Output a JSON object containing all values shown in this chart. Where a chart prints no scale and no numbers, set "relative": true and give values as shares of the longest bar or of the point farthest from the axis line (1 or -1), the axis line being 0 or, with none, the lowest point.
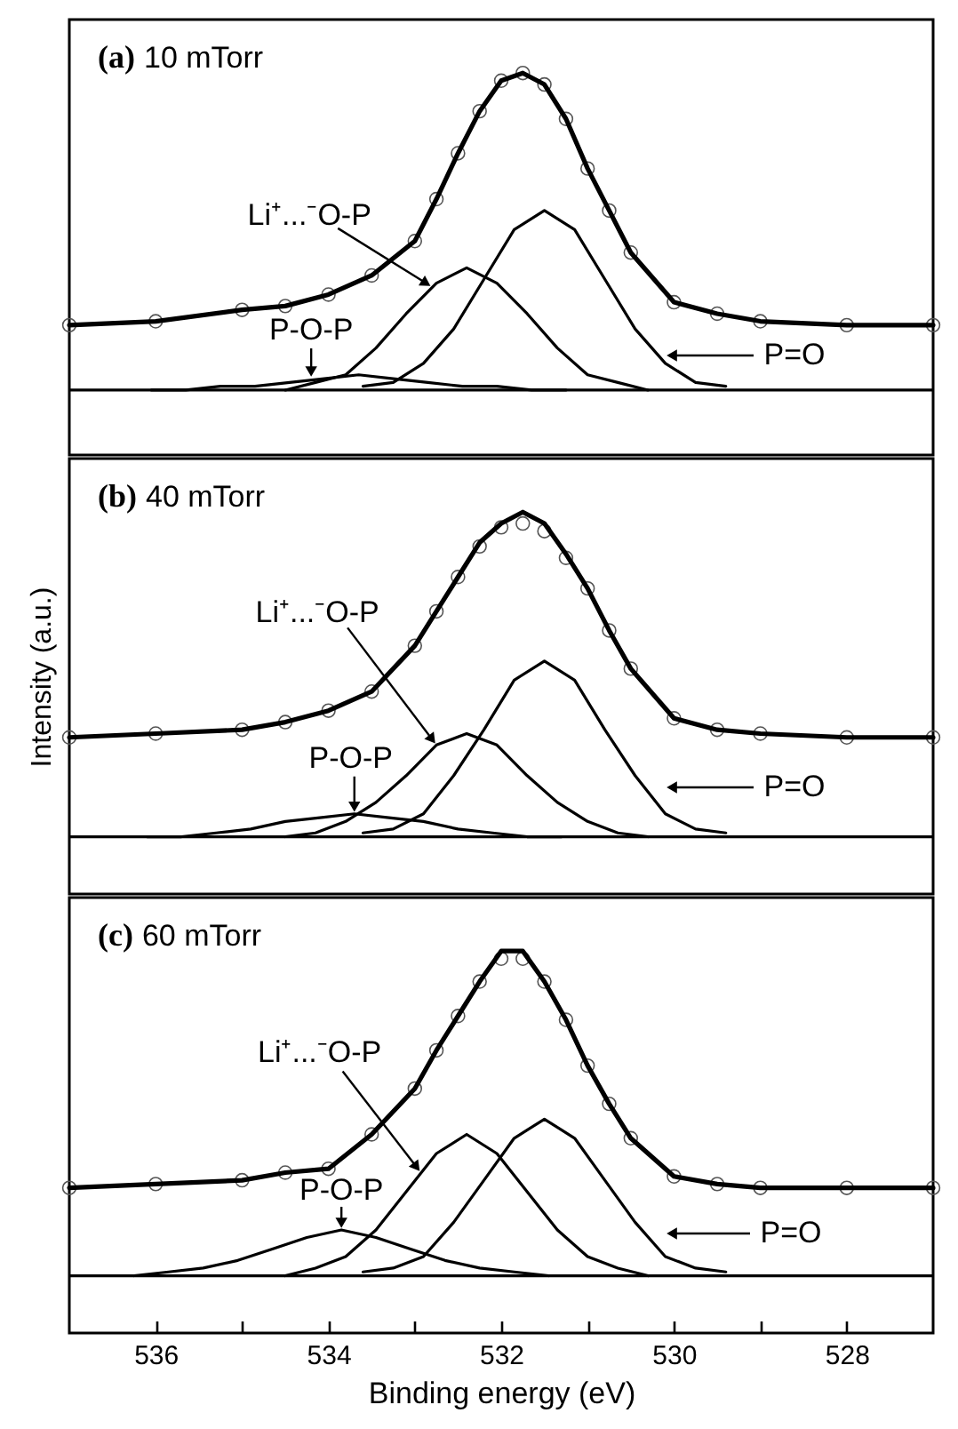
{
  "chart_data": [
    {
      "type": "line",
      "title": "(a) 10 mTorr",
      "relative": true,
      "xlim": [
        537,
        527
      ],
      "tick_labels": false,
      "series": [
        {
          "type": "scatter",
          "marker": "circle",
          "color": "#555555",
          "x": [
            537,
            536,
            535,
            534.5,
            534,
            533.5,
            533,
            532.75,
            532.5,
            532.25,
            532,
            531.75,
            531.5,
            531.25,
            531,
            530.75,
            530.5,
            530,
            529.5,
            529,
            528,
            527
          ],
          "values": [
            0.34,
            0.35,
            0.38,
            0.39,
            0.42,
            0.47,
            0.56,
            0.67,
            0.79,
            0.9,
            0.98,
            1.0,
            0.97,
            0.88,
            0.75,
            0.64,
            0.53,
            0.4,
            0.37,
            0.35,
            0.34,
            0.34
          ]
        },
        {
          "color": "#000000",
          "x": [
            537,
            536,
            535,
            534.5,
            534,
            533.5,
            533,
            532.75,
            532.5,
            532.25,
            532,
            531.75,
            531.5,
            531.25,
            531,
            530.75,
            530.5,
            530,
            529.5,
            529,
            528,
            527
          ],
          "values": [
            0.34,
            0.35,
            0.38,
            0.39,
            0.42,
            0.47,
            0.56,
            0.67,
            0.79,
            0.9,
            0.98,
            1.0,
            0.97,
            0.88,
            0.75,
            0.64,
            0.53,
            0.4,
            0.37,
            0.35,
            0.34,
            0.34
          ]
        },
        {
          "color": "#000000",
          "x": [
            533.6,
            533.25,
            532.9,
            532.55,
            532.2,
            531.85,
            531.5,
            531.15,
            530.8,
            530.45,
            530.1,
            529.75,
            529.4
          ],
          "values": [
            0.18,
            0.19,
            0.24,
            0.33,
            0.46,
            0.59,
            0.64,
            0.59,
            0.46,
            0.33,
            0.24,
            0.19,
            0.18
          ]
        },
        {
          "color": "#000000",
          "x": [
            534.5,
            534.15,
            533.8,
            533.45,
            533.1,
            532.75,
            532.4,
            532.05,
            531.7,
            531.35,
            531,
            530.65,
            530.3
          ],
          "values": [
            0.17,
            0.19,
            0.21,
            0.28,
            0.37,
            0.45,
            0.49,
            0.45,
            0.37,
            0.28,
            0.21,
            0.19,
            0.17
          ]
        },
        {
          "color": "#000000",
          "x": [
            536.05,
            535.65,
            535.25,
            534.85,
            534.45,
            534.05,
            533.65,
            533.25,
            532.85,
            532.45,
            532.05,
            531.65,
            531.25
          ],
          "values": [
            0.17,
            0.17,
            0.18,
            0.18,
            0.19,
            0.2,
            0.21,
            0.2,
            0.19,
            0.18,
            0.18,
            0.17,
            0.17
          ]
        }
      ],
      "ref_lines": [
        {
          "axis": "y",
          "value": 0.17
        }
      ],
      "annotations": [
        {
          "text": "Li⁺...⁻O-P",
          "x": 532.8,
          "y": 0.44
        },
        {
          "text": "P-O-P",
          "x": 534.2,
          "y": 0.2
        },
        "P=O"
      ]
    },
    {
      "type": "line",
      "title": "(b) 40 mTorr",
      "ylabel": "Intensity (a.u.)",
      "relative": true,
      "xlim": [
        537,
        527
      ],
      "tick_labels": false,
      "series": [
        {
          "type": "scatter",
          "marker": "circle",
          "color": "#555555",
          "x": [
            537,
            536,
            535,
            534.5,
            534,
            533.5,
            533,
            532.75,
            532.5,
            532.25,
            532,
            531.75,
            531.5,
            531.25,
            531,
            530.75,
            530.5,
            530,
            529.5,
            529,
            528,
            527
          ],
          "values": [
            0.41,
            0.42,
            0.43,
            0.45,
            0.48,
            0.53,
            0.65,
            0.74,
            0.83,
            0.91,
            0.96,
            0.97,
            0.95,
            0.88,
            0.8,
            0.69,
            0.59,
            0.46,
            0.43,
            0.42,
            0.41,
            0.41
          ]
        },
        {
          "color": "#000000",
          "x": [
            537,
            536,
            535,
            534.5,
            534,
            533.5,
            533,
            532.75,
            532.5,
            532.25,
            532,
            531.75,
            531.5,
            531.25,
            531,
            530.75,
            530.5,
            530,
            529.5,
            529,
            528,
            527
          ],
          "values": [
            0.41,
            0.42,
            0.43,
            0.45,
            0.48,
            0.53,
            0.65,
            0.74,
            0.83,
            0.92,
            0.97,
            1.0,
            0.97,
            0.89,
            0.8,
            0.69,
            0.59,
            0.46,
            0.43,
            0.42,
            0.41,
            0.41
          ]
        },
        {
          "color": "#000000",
          "x": [
            533.6,
            533.25,
            532.9,
            532.55,
            532.2,
            531.85,
            531.5,
            531.15,
            530.8,
            530.45,
            530.1,
            529.75,
            529.4
          ],
          "values": [
            0.16,
            0.17,
            0.21,
            0.31,
            0.43,
            0.56,
            0.61,
            0.56,
            0.43,
            0.31,
            0.21,
            0.17,
            0.16
          ]
        },
        {
          "color": "#000000",
          "x": [
            534.5,
            534.15,
            533.8,
            533.45,
            533.1,
            532.75,
            532.4,
            532.05,
            531.7,
            531.35,
            531,
            530.65,
            530.3
          ],
          "values": [
            0.15,
            0.16,
            0.19,
            0.24,
            0.31,
            0.39,
            0.42,
            0.39,
            0.31,
            0.24,
            0.19,
            0.16,
            0.15
          ]
        },
        {
          "color": "#000000",
          "x": [
            536.1,
            535.7,
            535.3,
            534.9,
            534.5,
            534.1,
            533.7,
            533.3,
            532.9,
            532.5,
            532.1,
            531.7,
            531.3
          ],
          "values": [
            0.15,
            0.15,
            0.16,
            0.17,
            0.19,
            0.2,
            0.21,
            0.2,
            0.19,
            0.17,
            0.16,
            0.15,
            0.15
          ]
        }
      ],
      "ref_lines": [
        {
          "axis": "y",
          "value": 0.15
        }
      ],
      "annotations": [
        {
          "text": "Li⁺...⁻O-P",
          "x": 532.75,
          "y": 0.39
        },
        {
          "text": "P-O-P",
          "x": 533.7,
          "y": 0.21
        },
        "P=O"
      ]
    },
    {
      "type": "line",
      "title": "(c) 60 mTorr",
      "xlabel": "Binding energy (eV)",
      "relative": true,
      "xlim": [
        537,
        527
      ],
      "xticks": [
        536,
        {
          "value": 535,
          "label": null
        },
        534,
        {
          "value": 533,
          "label": null
        },
        532,
        {
          "value": 531,
          "label": null
        },
        530,
        {
          "value": 529,
          "label": null
        },
        528
      ],
      "tick_labels": "x",
      "series": [
        {
          "type": "scatter",
          "marker": "circle",
          "color": "#555555",
          "x": [
            537,
            536,
            535,
            534.5,
            534,
            533.5,
            533,
            532.75,
            532.5,
            532.25,
            532,
            531.75,
            531.5,
            531.25,
            531,
            530.75,
            530.5,
            530,
            529.5,
            529,
            528,
            527
          ],
          "values": [
            0.38,
            0.39,
            0.4,
            0.42,
            0.43,
            0.52,
            0.64,
            0.74,
            0.83,
            0.92,
            0.98,
            0.98,
            0.92,
            0.82,
            0.7,
            0.6,
            0.51,
            0.41,
            0.39,
            0.38,
            0.38,
            0.38
          ]
        },
        {
          "color": "#000000",
          "x": [
            537,
            536,
            535,
            534.5,
            534,
            533.5,
            533,
            532.75,
            532.5,
            532.25,
            532,
            531.75,
            531.5,
            531.25,
            531,
            530.75,
            530.5,
            530,
            529.5,
            529,
            528,
            527
          ],
          "values": [
            0.38,
            0.39,
            0.4,
            0.42,
            0.43,
            0.52,
            0.64,
            0.74,
            0.83,
            0.92,
            1.0,
            1.0,
            0.92,
            0.82,
            0.7,
            0.6,
            0.51,
            0.41,
            0.39,
            0.38,
            0.38,
            0.38
          ]
        },
        {
          "color": "#000000",
          "x": [
            533.6,
            533.25,
            532.9,
            532.55,
            532.2,
            531.85,
            531.5,
            531.15,
            530.8,
            530.45,
            530.1,
            529.75,
            529.4
          ],
          "values": [
            0.16,
            0.17,
            0.2,
            0.29,
            0.4,
            0.51,
            0.56,
            0.51,
            0.4,
            0.29,
            0.2,
            0.17,
            0.16
          ]
        },
        {
          "color": "#000000",
          "x": [
            534.5,
            534.15,
            533.8,
            533.45,
            533.1,
            532.75,
            532.4,
            532.05,
            531.7,
            531.35,
            531,
            530.65,
            530.3
          ],
          "values": [
            0.15,
            0.17,
            0.2,
            0.27,
            0.37,
            0.47,
            0.52,
            0.47,
            0.37,
            0.27,
            0.2,
            0.17,
            0.15
          ]
        },
        {
          "color": "#000000",
          "x": [
            536.25,
            535.85,
            535.45,
            535.05,
            534.65,
            534.25,
            533.85,
            533.45,
            533.05,
            532.65,
            532.25,
            531.85,
            531.45
          ],
          "values": [
            0.15,
            0.16,
            0.17,
            0.19,
            0.22,
            0.25,
            0.27,
            0.25,
            0.22,
            0.19,
            0.17,
            0.16,
            0.15
          ]
        }
      ],
      "ref_lines": [
        {
          "axis": "y",
          "value": 0.15
        }
      ],
      "annotations": [
        {
          "text": "Li⁺...⁻O-P",
          "x": 532.93,
          "y": 0.42
        },
        {
          "text": "P-O-P",
          "x": 533.85,
          "y": 0.27
        },
        "P=O"
      ]
    }
  ]
}
